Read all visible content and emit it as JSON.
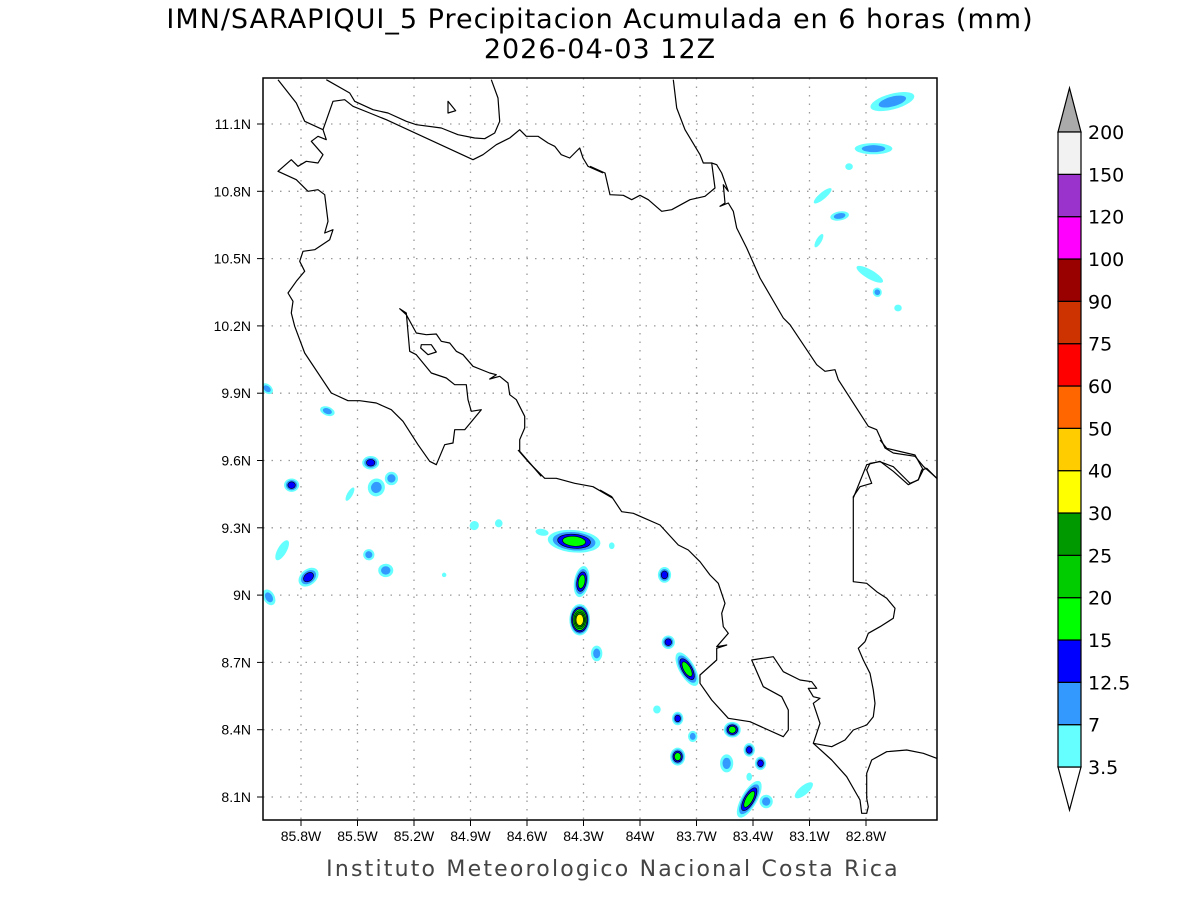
{
  "title": {
    "line1": "IMN/SARAPIQUI_5 Precipitacion Acumulada en 6 horas (mm)",
    "line2": "2026-04-03 12Z"
  },
  "footer": "Instituto Meteorologico Nacional Costa Rica",
  "chart_data": {
    "type": "heatmap",
    "title": "IMN/SARAPIQUI_5 Precipitacion Acumulada en 6 horas (mm)",
    "subtitle": "2026-04-03 12Z",
    "units": "mm",
    "lon_range": [
      -86.0,
      -82.42
    ],
    "lat_range": [
      8.0,
      11.3
    ],
    "grid": true,
    "x_ticks": [
      "85.8W",
      "85.5W",
      "85.2W",
      "84.9W",
      "84.6W",
      "84.3W",
      "84W",
      "83.7W",
      "83.4W",
      "83.1W",
      "82.8W"
    ],
    "x_tick_values": [
      -85.8,
      -85.5,
      -85.2,
      -84.9,
      -84.6,
      -84.3,
      -84.0,
      -83.7,
      -83.4,
      -83.1,
      -82.8
    ],
    "y_ticks": [
      "11.1N",
      "10.8N",
      "10.5N",
      "10.2N",
      "9.9N",
      "9.6N",
      "9.3N",
      "9N",
      "8.7N",
      "8.4N",
      "8.1N"
    ],
    "y_tick_values": [
      11.1,
      10.8,
      10.5,
      10.2,
      9.9,
      9.6,
      9.3,
      9.0,
      8.7,
      8.4,
      8.1
    ],
    "colorbar": {
      "levels": [
        "3.5",
        "7",
        "12.5",
        "15",
        "20",
        "25",
        "30",
        "40",
        "50",
        "60",
        "75",
        "90",
        "100",
        "120",
        "150",
        "200"
      ],
      "colors": [
        "#66ffff",
        "#3399ff",
        "#0000ff",
        "#00ff00",
        "#00cc00",
        "#009900",
        "#ffff00",
        "#ffcc00",
        "#ff6600",
        "#ff0000",
        "#cc3300",
        "#990000",
        "#ff00ff",
        "#9933cc",
        "#f2f2f2"
      ],
      "over_color": "#aaaaaa",
      "under_color": "#ffffff"
    },
    "precip_cells": [
      {
        "lon": -82.66,
        "lat": 11.2,
        "max_mm": 10,
        "rx": 0.12,
        "ry": 0.035,
        "rot": -15
      },
      {
        "lon": -82.76,
        "lat": 10.99,
        "max_mm": 8,
        "rx": 0.1,
        "ry": 0.025,
        "rot": 0
      },
      {
        "lon": -82.89,
        "lat": 10.91,
        "max_mm": 4,
        "rx": 0.02,
        "ry": 0.015,
        "rot": 0
      },
      {
        "lon": -83.03,
        "lat": 10.78,
        "max_mm": 4,
        "rx": 0.06,
        "ry": 0.015,
        "rot": -40
      },
      {
        "lon": -82.94,
        "lat": 10.69,
        "max_mm": 9,
        "rx": 0.05,
        "ry": 0.02,
        "rot": -10
      },
      {
        "lon": -83.05,
        "lat": 10.58,
        "max_mm": 4,
        "rx": 0.04,
        "ry": 0.012,
        "rot": -60
      },
      {
        "lon": -82.78,
        "lat": 10.43,
        "max_mm": 4,
        "rx": 0.08,
        "ry": 0.02,
        "rot": 30
      },
      {
        "lon": -82.74,
        "lat": 10.35,
        "max_mm": 9,
        "rx": 0.025,
        "ry": 0.02,
        "rot": 60
      },
      {
        "lon": -82.63,
        "lat": 10.28,
        "max_mm": 4,
        "rx": 0.02,
        "ry": 0.015,
        "rot": 0
      },
      {
        "lon": -85.98,
        "lat": 9.92,
        "max_mm": 8,
        "rx": 0.035,
        "ry": 0.02,
        "rot": 40
      },
      {
        "lon": -85.66,
        "lat": 9.82,
        "max_mm": 8,
        "rx": 0.04,
        "ry": 0.02,
        "rot": 20
      },
      {
        "lon": -85.43,
        "lat": 9.59,
        "max_mm": 13,
        "rx": 0.045,
        "ry": 0.03,
        "rot": 0
      },
      {
        "lon": -85.32,
        "lat": 9.52,
        "max_mm": 9,
        "rx": 0.035,
        "ry": 0.03,
        "rot": 0
      },
      {
        "lon": -85.4,
        "lat": 9.48,
        "max_mm": 9,
        "rx": 0.045,
        "ry": 0.04,
        "rot": 20
      },
      {
        "lon": -85.54,
        "lat": 9.45,
        "max_mm": 4,
        "rx": 0.04,
        "ry": 0.012,
        "rot": -60
      },
      {
        "lon": -85.85,
        "lat": 9.49,
        "max_mm": 13,
        "rx": 0.04,
        "ry": 0.03,
        "rot": 0
      },
      {
        "lon": -85.9,
        "lat": 9.2,
        "max_mm": 5,
        "rx": 0.06,
        "ry": 0.02,
        "rot": -60
      },
      {
        "lon": -85.76,
        "lat": 9.08,
        "max_mm": 13,
        "rx": 0.06,
        "ry": 0.035,
        "rot": -40
      },
      {
        "lon": -85.97,
        "lat": 8.99,
        "max_mm": 9,
        "rx": 0.045,
        "ry": 0.025,
        "rot": 60
      },
      {
        "lon": -85.44,
        "lat": 9.18,
        "max_mm": 8,
        "rx": 0.03,
        "ry": 0.025,
        "rot": 60
      },
      {
        "lon": -85.35,
        "lat": 9.11,
        "max_mm": 9,
        "rx": 0.04,
        "ry": 0.03,
        "rot": 0
      },
      {
        "lon": -85.04,
        "lat": 9.09,
        "max_mm": 4,
        "rx": 0.012,
        "ry": 0.01,
        "rot": 0
      },
      {
        "lon": -84.88,
        "lat": 9.31,
        "max_mm": 5,
        "rx": 0.025,
        "ry": 0.02,
        "rot": -40
      },
      {
        "lon": -84.75,
        "lat": 9.32,
        "max_mm": 5,
        "rx": 0.02,
        "ry": 0.018,
        "rot": 0
      },
      {
        "lon": -84.52,
        "lat": 9.28,
        "max_mm": 4,
        "rx": 0.035,
        "ry": 0.015,
        "rot": 10
      },
      {
        "lon": -84.35,
        "lat": 9.24,
        "max_mm": 18,
        "rx": 0.14,
        "ry": 0.05,
        "rot": 5
      },
      {
        "lon": -84.31,
        "lat": 9.06,
        "max_mm": 16,
        "rx": 0.04,
        "ry": 0.07,
        "rot": 10
      },
      {
        "lon": -84.32,
        "lat": 8.89,
        "max_mm": 35,
        "rx": 0.055,
        "ry": 0.07,
        "rot": 0
      },
      {
        "lon": -84.23,
        "lat": 8.74,
        "max_mm": 9,
        "rx": 0.03,
        "ry": 0.035,
        "rot": 0
      },
      {
        "lon": -84.15,
        "lat": 9.22,
        "max_mm": 4,
        "rx": 0.015,
        "ry": 0.015,
        "rot": 0
      },
      {
        "lon": -83.87,
        "lat": 9.09,
        "max_mm": 13,
        "rx": 0.035,
        "ry": 0.035,
        "rot": 0
      },
      {
        "lon": -83.85,
        "lat": 8.79,
        "max_mm": 13,
        "rx": 0.035,
        "ry": 0.03,
        "rot": 0
      },
      {
        "lon": -83.75,
        "lat": 8.67,
        "max_mm": 18,
        "rx": 0.1,
        "ry": 0.035,
        "rot": 60
      },
      {
        "lon": -83.91,
        "lat": 8.49,
        "max_mm": 4,
        "rx": 0.02,
        "ry": 0.018,
        "rot": 0
      },
      {
        "lon": -83.8,
        "lat": 8.45,
        "max_mm": 13,
        "rx": 0.03,
        "ry": 0.03,
        "rot": 0
      },
      {
        "lon": -83.72,
        "lat": 8.37,
        "max_mm": 9,
        "rx": 0.025,
        "ry": 0.025,
        "rot": 0
      },
      {
        "lon": -83.51,
        "lat": 8.4,
        "max_mm": 18,
        "rx": 0.045,
        "ry": 0.035,
        "rot": 0
      },
      {
        "lon": -83.8,
        "lat": 8.28,
        "max_mm": 18,
        "rx": 0.04,
        "ry": 0.04,
        "rot": 0
      },
      {
        "lon": -83.54,
        "lat": 8.25,
        "max_mm": 9,
        "rx": 0.035,
        "ry": 0.04,
        "rot": 0
      },
      {
        "lon": -83.42,
        "lat": 8.31,
        "max_mm": 13,
        "rx": 0.03,
        "ry": 0.03,
        "rot": 0
      },
      {
        "lon": -83.36,
        "lat": 8.25,
        "max_mm": 13,
        "rx": 0.03,
        "ry": 0.03,
        "rot": 0
      },
      {
        "lon": -83.42,
        "lat": 8.19,
        "max_mm": 4,
        "rx": 0.015,
        "ry": 0.018,
        "rot": 0
      },
      {
        "lon": -83.42,
        "lat": 8.09,
        "max_mm": 18,
        "rx": 0.11,
        "ry": 0.035,
        "rot": -60
      },
      {
        "lon": -83.33,
        "lat": 8.08,
        "max_mm": 9,
        "rx": 0.035,
        "ry": 0.03,
        "rot": 0
      },
      {
        "lon": -83.13,
        "lat": 8.13,
        "max_mm": 4,
        "rx": 0.06,
        "ry": 0.02,
        "rot": -40
      }
    ]
  }
}
